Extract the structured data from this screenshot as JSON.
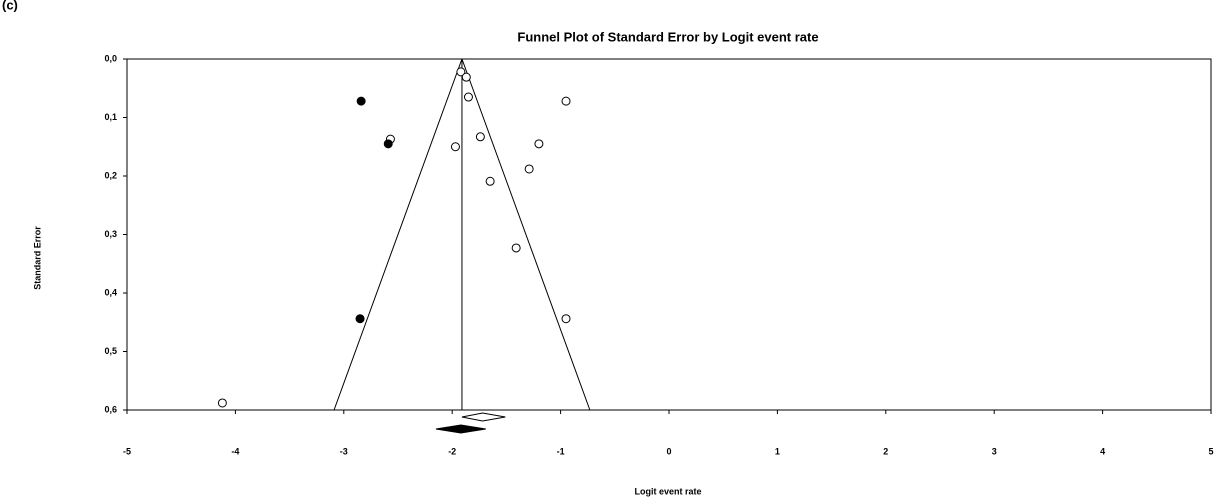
{
  "chart_data": {
    "type": "funnel",
    "panel_label": "(c)",
    "title": "Funnel Plot of Standard Error by Logit event rate",
    "xlabel": "Logit event rate",
    "ylabel": "Standard Error",
    "xlim": [
      -5,
      5
    ],
    "xticks": [
      -5,
      -4,
      -3,
      -2,
      -1,
      0,
      1,
      2,
      3,
      4,
      5
    ],
    "ylim": [
      0,
      0.6
    ],
    "y_inverted": true,
    "yticks": [
      {
        "value": 0,
        "label": "0,0"
      },
      {
        "value": 0.1,
        "label": "0,1"
      },
      {
        "value": 0.2,
        "label": "0,2"
      },
      {
        "value": 0.3,
        "label": "0,3"
      },
      {
        "value": 0.4,
        "label": "0,4"
      },
      {
        "value": 0.5,
        "label": "0,5"
      },
      {
        "value": 0.6,
        "label": "0,6"
      }
    ],
    "funnel": {
      "center": -1.91,
      "lower": -3.09,
      "upper": -0.73
    },
    "series": [
      {
        "marker": "open",
        "color": "#000000",
        "x": [
          -1.92,
          -1.87,
          -1.85,
          -0.95,
          -2.57,
          -1.74,
          -1.2,
          -1.97,
          -1.29,
          -1.65,
          -1.41,
          -0.95,
          -4.12
        ],
        "values": [
          0.022,
          0.031,
          0.065,
          0.072,
          0.137,
          0.133,
          0.145,
          0.15,
          0.188,
          0.209,
          0.323,
          0.444,
          0.588
        ]
      },
      {
        "marker": "filled",
        "color": "#000000",
        "x": [
          -2.84,
          -2.59,
          -2.85
        ],
        "values": [
          0.072,
          0.145,
          0.444
        ]
      }
    ],
    "summary": [
      {
        "marker": "open",
        "x": -1.72,
        "lower": -1.91,
        "upper": -1.51
      },
      {
        "marker": "filled",
        "x": -1.92,
        "lower": -2.15,
        "upper": -1.69
      }
    ]
  }
}
